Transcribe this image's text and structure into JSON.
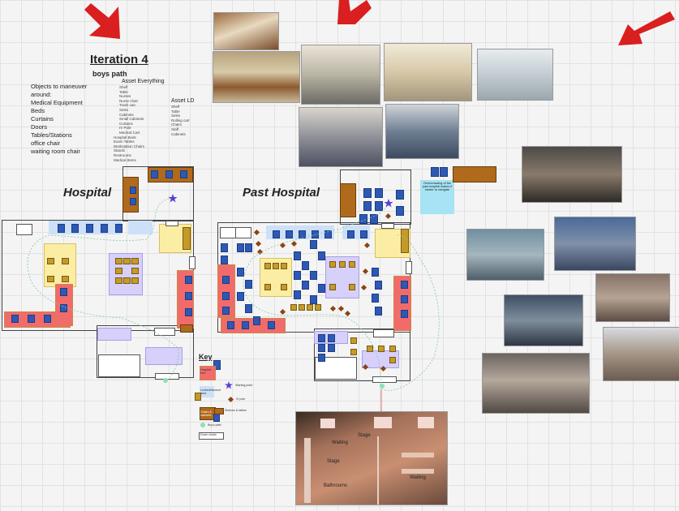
{
  "header": {
    "title": "Iteration 4",
    "subtitle": "boys path"
  },
  "objects": {
    "heading": "Objects to maneuver around:",
    "items": [
      "Medical Equipment",
      "Beds",
      "Curtains",
      "Doors",
      "Tables/Stations",
      "office chair",
      "waiting room chair"
    ]
  },
  "assets": {
    "everything_heading": "Asset Everything",
    "everything_items": [
      "Shelf",
      "Table",
      "Nurses",
      "Nurse chair",
      "Trash can",
      "Sinks",
      "Cabinets",
      "Small Cabinets",
      "Curtains",
      "IV Pole",
      "Medical Cart",
      "Hospital Beds",
      "Exam Tables",
      "Workstation Chairs",
      "Stands",
      "Restrooms",
      "Medical Items"
    ],
    "ld_heading": "Asset LD",
    "ld_items": [
      "Shelf",
      "Table",
      "Sinks",
      "Rolling cart",
      "Chairs",
      "Staff",
      "Cabinets"
    ]
  },
  "labels": {
    "hospital": "Hospital",
    "past_hospital": "Past Hospital"
  },
  "key": {
    "title": "Key",
    "items": [
      "Hospital bed",
      "Locked/blocked area",
      "Chairs & cabinets",
      "Starting point",
      "Boy's path",
      "IV pole",
      "Shelves & tables",
      "Exam chairs"
    ]
  },
  "note": {
    "text": "Overcrowding of the past hospital makes it harder to navigate"
  },
  "render": {
    "labels": [
      "Stage",
      "Waiting",
      "Stage",
      "Waiting",
      "Bathrooms"
    ]
  },
  "colors": {
    "arrow": "#d91f1f",
    "bed": "#f26b6b",
    "chair": "#2e58b5",
    "waiting_area": "#cde0f8",
    "station": "#fbeea4",
    "exam_area": "#d6d0fa",
    "cabinet": "#b06a1c",
    "note": "#a6e3f4"
  }
}
